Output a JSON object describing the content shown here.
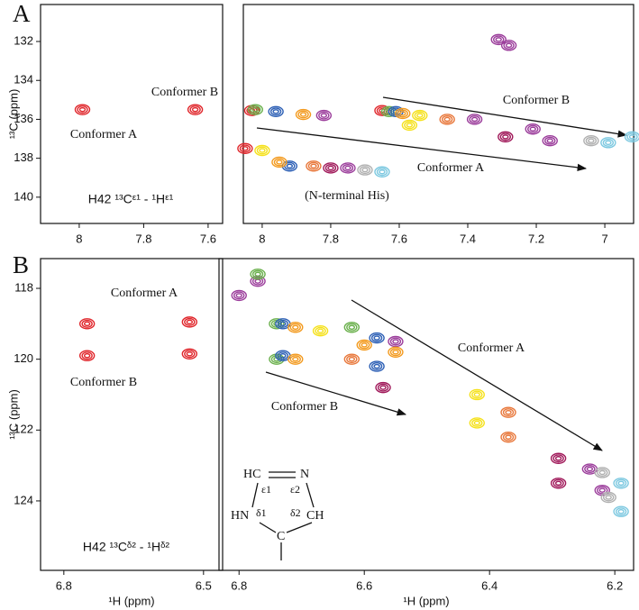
{
  "panel_labels": [
    "A",
    "B"
  ],
  "structure": {
    "labels": [
      "HC",
      "N",
      "ε1",
      "ε2",
      "HN",
      "δ1",
      "δ2",
      "CH",
      "C"
    ]
  },
  "chart_data": [
    {
      "type": "contour",
      "label": "H42 ¹³Cᵋ¹ - ¹Hᵋ¹",
      "y_label": "¹³C (ppm)",
      "annotations": [
        "Conformer B",
        "Conformer A"
      ],
      "xlim": [
        8.12,
        7.555
      ],
      "xticks": [
        8.0,
        7.8,
        7.6
      ],
      "ylim": [
        130.1,
        141.35
      ],
      "yticks": [
        132,
        134,
        136,
        138,
        140
      ],
      "series": [
        {
          "color": "#e0262b",
          "x": [
            7.99,
            7.64
          ],
          "values": [
            135.5,
            135.5
          ]
        }
      ]
    },
    {
      "type": "contour",
      "annotations": [
        "Conformer B",
        "Conformer A",
        "(N-terminal His)"
      ],
      "xlim": [
        8.055,
        6.916
      ],
      "xticks": [
        8.0,
        7.8,
        7.6,
        7.4,
        7.2,
        7.0
      ],
      "ylim": [
        130.1,
        141.35
      ],
      "series": [
        {
          "color": "#e0262b",
          "x": [
            8.03,
            7.65,
            8.05
          ],
          "values": [
            135.55,
            135.55,
            137.5
          ]
        },
        {
          "color": "#6ab04c",
          "x": [
            8.02,
            7.63
          ],
          "values": [
            135.5,
            135.6
          ]
        },
        {
          "color": "#2c5fb5",
          "x": [
            7.96,
            7.61,
            7.92
          ],
          "values": [
            135.6,
            135.6,
            138.4
          ]
        },
        {
          "color": "#f39a1e",
          "x": [
            7.88,
            7.59,
            7.95
          ],
          "values": [
            135.75,
            135.7,
            138.2
          ]
        },
        {
          "color": "#f5e11b",
          "x": [
            7.54,
            7.57,
            8.0
          ],
          "values": [
            135.8,
            136.3,
            137.6
          ]
        },
        {
          "color": "#e8773a",
          "x": [
            7.46,
            7.85
          ],
          "values": [
            136.0,
            138.4
          ]
        },
        {
          "color": "#9b3d9b",
          "x": [
            7.82,
            7.38,
            7.21,
            7.16,
            7.31,
            7.28,
            7.75
          ],
          "values": [
            135.8,
            136.0,
            136.5,
            137.1,
            131.9,
            132.2,
            138.5
          ]
        },
        {
          "color": "#a0195a",
          "x": [
            7.29,
            7.8
          ],
          "values": [
            136.9,
            138.5
          ]
        },
        {
          "color": "#b0b0b0",
          "x": [
            7.04,
            7.7
          ],
          "values": [
            137.1,
            138.6
          ]
        },
        {
          "color": "#7cc8e0",
          "x": [
            6.99,
            6.92,
            7.65
          ],
          "values": [
            137.2,
            136.9,
            138.7
          ]
        }
      ]
    },
    {
      "type": "contour",
      "label": "H42 ¹³Cᵟ² - ¹Hᵟ²",
      "y_label": "¹³C (ppm)",
      "x_label": "¹H (ppm)",
      "annotations": [
        "Conformer A",
        "Conformer B"
      ],
      "xlim": [
        6.85,
        6.459
      ],
      "xticks": [
        6.8,
        6.5
      ],
      "ylim": [
        117.16,
        125.96
      ],
      "yticks": [
        118,
        120,
        122,
        124
      ],
      "series": [
        {
          "color": "#e0262b",
          "x": [
            6.75,
            6.75,
            6.53,
            6.53
          ],
          "values": [
            119.0,
            119.9,
            118.95,
            119.85
          ]
        }
      ]
    },
    {
      "type": "contour",
      "x_label": "¹H (ppm)",
      "annotations": [
        "Conformer A",
        "Conformer B"
      ],
      "xlim": [
        6.832,
        6.17
      ],
      "xticks": [
        6.8,
        6.6,
        6.4,
        6.2
      ],
      "ylim": [
        117.16,
        125.96
      ],
      "series": [
        {
          "color": "#9b3d9b",
          "x": [
            6.8,
            6.77,
            6.24,
            6.22,
            6.55
          ],
          "values": [
            118.2,
            117.8,
            123.1,
            123.7,
            119.5
          ]
        },
        {
          "color": "#6ab04c",
          "x": [
            6.74,
            6.74,
            6.62,
            6.77
          ],
          "values": [
            119.0,
            120.0,
            119.1,
            117.6
          ]
        },
        {
          "color": "#2c5fb5",
          "x": [
            6.73,
            6.73,
            6.58,
            6.58
          ],
          "values": [
            119.0,
            119.9,
            119.4,
            120.2
          ]
        },
        {
          "color": "#f39a1e",
          "x": [
            6.71,
            6.71,
            6.6,
            6.55
          ],
          "values": [
            119.1,
            120.0,
            119.6,
            119.8
          ]
        },
        {
          "color": "#f5e11b",
          "x": [
            6.67,
            6.42,
            6.42
          ],
          "values": [
            119.2,
            121.0,
            121.8
          ]
        },
        {
          "color": "#e8773a",
          "x": [
            6.37,
            6.37,
            6.62
          ],
          "values": [
            121.5,
            122.2,
            120.0
          ]
        },
        {
          "color": "#a0195a",
          "x": [
            6.29,
            6.29,
            6.57
          ],
          "values": [
            122.8,
            123.5,
            120.8
          ]
        },
        {
          "color": "#b0b0b0",
          "x": [
            6.22,
            6.21
          ],
          "values": [
            123.2,
            123.9
          ]
        },
        {
          "color": "#7cc8e0",
          "x": [
            6.19,
            6.19
          ],
          "values": [
            123.5,
            124.3
          ]
        }
      ]
    }
  ]
}
